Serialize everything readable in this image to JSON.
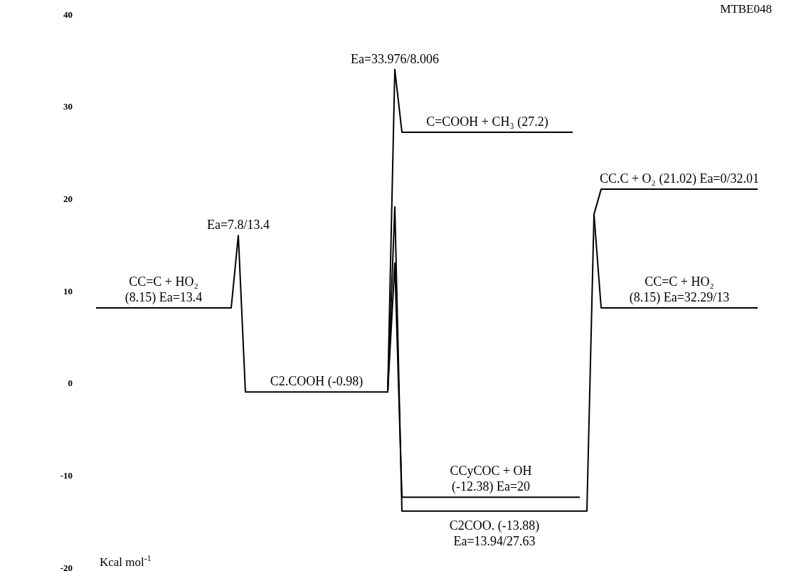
{
  "chart_data": {
    "type": "line",
    "title": "MTBE048",
    "ylabel": "Kcal mol$^{-1}$",
    "categories": [
      null,
      null,
      null,
      null,
      null,
      null,
      null,
      null,
      null,
      null,
      null,
      null,
      null,
      null,
      null,
      null,
      null,
      null,
      null,
      null,
      null,
      null,
      null,
      null,
      null,
      null,
      null,
      null,
      null,
      null,
      null,
      null,
      null,
      null,
      null,
      null,
      null,
      null,
      null,
      null,
      null,
      null,
      null,
      null,
      null,
      null,
      null,
      null,
      null,
      null,
      null,
      null,
      null,
      null,
      null,
      null,
      null,
      null,
      null,
      null,
      null,
      null,
      null,
      null,
      null,
      null,
      null,
      null,
      null,
      null,
      null,
      null,
      null,
      null,
      null,
      null,
      null,
      null,
      null,
      null,
      null,
      null,
      null,
      null,
      null,
      null,
      null,
      null,
      null,
      null,
      null,
      null,
      null,
      null
    ],
    "ylim": [
      -20,
      40
    ],
    "yticks": [
      -20,
      -10,
      0,
      10,
      20,
      30,
      40
    ],
    "tick_labels": "y",
    "grid": false,
    "marker": "none",
    "line_style": "solid",
    "series": [
      {
        "color": "#000000",
        "values": [
          8.15,
          8.15,
          8.15,
          8.15,
          8.15,
          8.15,
          8.15,
          8.15,
          8.15,
          8.15,
          8.15,
          8.15,
          8.15,
          8.15,
          8.15,
          8.15,
          8.15,
          8.15,
          8.15,
          8.15,
          16,
          -0.98,
          -0.98,
          -0.98,
          -0.98,
          -0.98,
          -0.98,
          -0.98,
          -0.98,
          -0.98,
          -0.98,
          -0.98,
          -0.98,
          -0.98,
          -0.98,
          -0.98,
          -0.98,
          -0.98,
          -0.98,
          -0.98,
          -0.98,
          -0.98,
          19.1,
          -13.88,
          -13.88,
          -13.88,
          -13.88,
          -13.88,
          -13.88,
          -13.88,
          -13.88,
          -13.88,
          -13.88,
          -13.88,
          -13.88,
          -13.88,
          -13.88,
          -13.88,
          -13.88,
          -13.88,
          -13.88,
          -13.88,
          -13.88,
          -13.88,
          -13.88,
          -13.88,
          -13.88,
          -13.88,
          -13.88,
          -13.88,
          18.3,
          21.02,
          21.02,
          21.02,
          21.02,
          21.02,
          21.02,
          21.02,
          21.02,
          21.02,
          21.02,
          21.02,
          21.02,
          21.02,
          21.02,
          21.02,
          21.02,
          21.02,
          21.02,
          21.02,
          21.02,
          21.02,
          21.02,
          21.02
        ]
      },
      {
        "color": "#000000",
        "values": [
          null,
          null,
          null,
          null,
          null,
          null,
          null,
          null,
          null,
          null,
          null,
          null,
          null,
          null,
          null,
          null,
          null,
          null,
          null,
          null,
          null,
          null,
          null,
          null,
          null,
          null,
          null,
          null,
          null,
          null,
          null,
          null,
          null,
          null,
          null,
          null,
          null,
          null,
          null,
          null,
          null,
          -0.98,
          34,
          27.2,
          27.2,
          27.2,
          27.2,
          27.2,
          27.2,
          27.2,
          27.2,
          27.2,
          27.2,
          27.2,
          27.2,
          27.2,
          27.2,
          27.2,
          27.2,
          27.2,
          27.2,
          27.2,
          27.2,
          27.2,
          27.2,
          27.2,
          27.2,
          27.2,
          null,
          null,
          null,
          null,
          null,
          null,
          null,
          null,
          null,
          null,
          null,
          null,
          null,
          null,
          null,
          null,
          null,
          null,
          null,
          null,
          null,
          null,
          null,
          null,
          null,
          null
        ]
      },
      {
        "color": "#000000",
        "values": [
          null,
          null,
          null,
          null,
          null,
          null,
          null,
          null,
          null,
          null,
          null,
          null,
          null,
          null,
          null,
          null,
          null,
          null,
          null,
          null,
          null,
          null,
          null,
          null,
          null,
          null,
          null,
          null,
          null,
          null,
          null,
          null,
          null,
          null,
          null,
          null,
          null,
          null,
          null,
          null,
          null,
          null,
          null,
          null,
          null,
          null,
          null,
          null,
          null,
          null,
          null,
          null,
          null,
          null,
          null,
          null,
          null,
          null,
          null,
          null,
          null,
          null,
          null,
          null,
          null,
          null,
          null,
          null,
          null,
          null,
          18.3,
          8.15,
          8.15,
          8.15,
          8.15,
          8.15,
          8.15,
          8.15,
          8.15,
          8.15,
          8.15,
          8.15,
          8.15,
          8.15,
          8.15,
          8.15,
          8.15,
          8.15,
          8.15,
          8.15,
          8.15,
          8.15,
          8.15,
          8.15
        ]
      },
      {
        "color": "#000000",
        "values": [
          null,
          null,
          null,
          null,
          null,
          null,
          null,
          null,
          null,
          null,
          null,
          null,
          null,
          null,
          null,
          null,
          null,
          null,
          null,
          null,
          null,
          null,
          null,
          null,
          null,
          null,
          null,
          null,
          null,
          null,
          null,
          null,
          null,
          null,
          null,
          null,
          null,
          null,
          null,
          null,
          null,
          -0.98,
          13,
          -12.38,
          -12.38,
          -12.38,
          -12.38,
          -12.38,
          -12.38,
          -12.38,
          -12.38,
          -12.38,
          -12.38,
          -12.38,
          -12.38,
          -12.38,
          -12.38,
          -12.38,
          -12.38,
          -12.38,
          -12.38,
          -12.38,
          -12.38,
          -12.38,
          -12.38,
          -12.38,
          -12.38,
          -12.38,
          -12.38,
          null,
          null,
          null,
          null,
          null,
          null,
          null,
          null,
          null,
          null,
          null,
          null,
          null,
          null,
          null,
          null,
          null,
          null,
          null,
          null,
          null,
          null,
          null,
          null,
          null
        ]
      }
    ],
    "annotations": [
      {
        "text": "CC=C + HO₂\n(8.15) Ea=13.4",
        "y": 8.15
      },
      {
        "text": "Ea=7.8/13.4",
        "y": 16
      },
      {
        "text": "C2.COOH  (-0.98)",
        "y": -0.98
      },
      {
        "text": "Ea=33.976/8.006",
        "y": 34
      },
      {
        "text": "C=COOH + CH₃  (27.2)",
        "y": 27.2
      },
      {
        "text": "CC.C + O₂  (21.02) Ea=0/32.01",
        "y": 21.02
      },
      {
        "text": "CC=C + HO₂\n(8.15) Ea=32.29/13",
        "y": 8.15
      },
      {
        "text": "CCyCOC + OH\n(-12.38) Ea=20",
        "y": -12.38
      },
      {
        "text": "C2COO.  (-13.88)\nEa=13.94/27.63",
        "y": -13.88
      }
    ]
  }
}
